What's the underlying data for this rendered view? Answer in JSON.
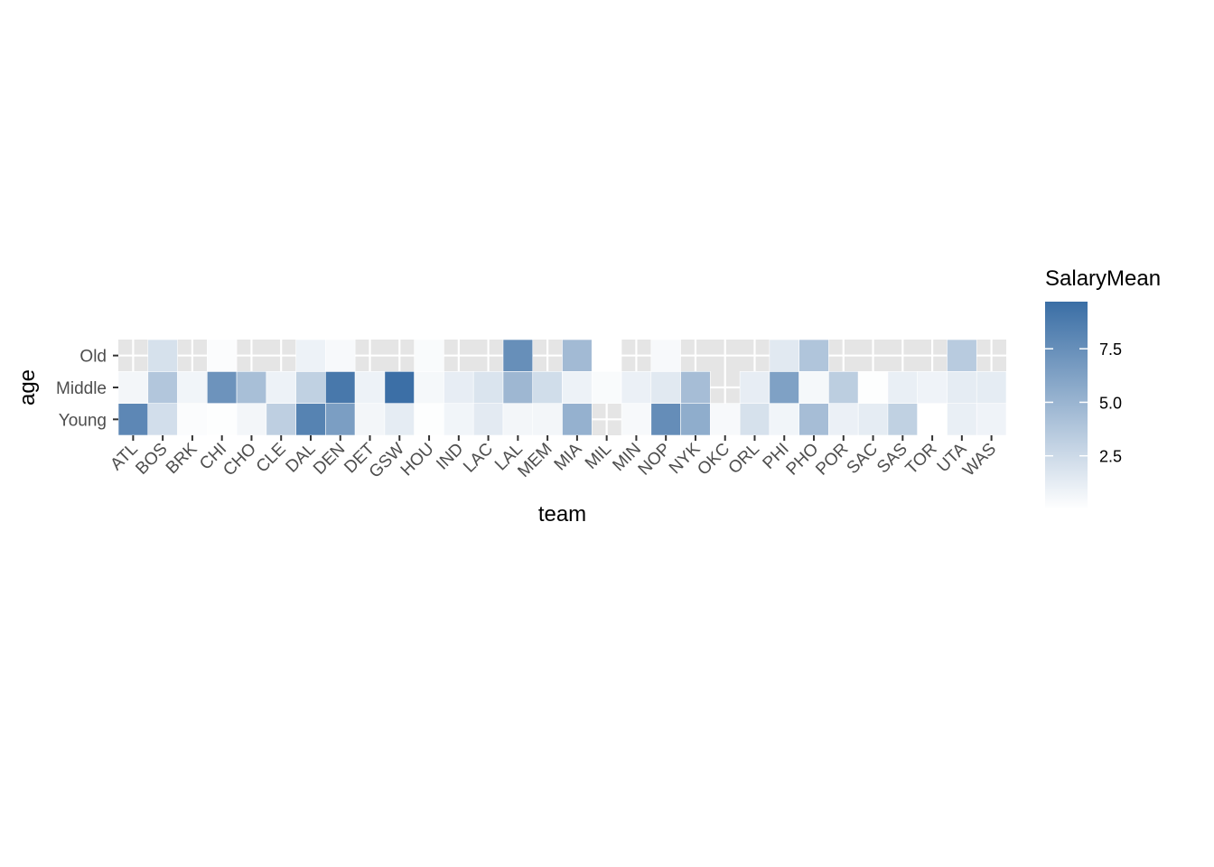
{
  "chart_data": {
    "type": "heatmap",
    "xlabel": "team",
    "ylabel": "age",
    "categories": [
      "ATL",
      "BOS",
      "BRK",
      "CHI",
      "CHO",
      "CLE",
      "DAL",
      "DEN",
      "DET",
      "GSW",
      "HOU",
      "IND",
      "LAC",
      "LAL",
      "MEM",
      "MIA",
      "MIL",
      "MIN",
      "NOP",
      "NYK",
      "OKC",
      "ORL",
      "PHI",
      "PHO",
      "POR",
      "SAC",
      "SAS",
      "TOR",
      "UTA",
      "WAS"
    ],
    "y_categories": [
      "Young",
      "Middle",
      "Old"
    ],
    "series": [
      {
        "name": "Young",
        "values": [
          8.0,
          2.2,
          0.2,
          0.1,
          0.6,
          3.2,
          8.3,
          6.5,
          0.6,
          1.3,
          0.1,
          0.7,
          1.4,
          0.6,
          0.6,
          5.2,
          null,
          0.4,
          7.6,
          5.5,
          0.4,
          2.0,
          0.7,
          4.4,
          1.0,
          1.3,
          3.1,
          0.0,
          1.1,
          0.8
        ]
      },
      {
        "name": "Middle",
        "values": [
          0.6,
          3.8,
          0.7,
          7.2,
          4.3,
          0.9,
          3.1,
          9.0,
          0.9,
          9.6,
          0.5,
          1.2,
          1.8,
          4.8,
          2.3,
          0.9,
          0.3,
          1.0,
          1.5,
          4.4,
          null,
          1.2,
          6.3,
          0.5,
          3.3,
          0.1,
          1.1,
          0.8,
          1.3,
          1.3
        ]
      },
      {
        "name": "Old",
        "values": [
          null,
          2.0,
          null,
          0.2,
          null,
          null,
          0.9,
          0.4,
          null,
          null,
          0.3,
          null,
          null,
          7.5,
          null,
          4.6,
          0.0,
          null,
          0.4,
          null,
          null,
          null,
          1.5,
          3.9,
          null,
          null,
          null,
          null,
          3.5,
          null
        ]
      }
    ],
    "legend": {
      "title": "SalaryMean",
      "ticks": [
        2.5,
        5.0,
        7.5
      ],
      "tick_labels": [
        "2.5",
        "5.0",
        "7.5"
      ],
      "range": [
        0,
        9.7
      ],
      "position": "right"
    },
    "colors": {
      "low": "#ffffff",
      "high": "#3a6ea5",
      "panel": "#e5e5e5",
      "grid": "#ffffff",
      "tick": "#333333"
    },
    "grid": true
  }
}
